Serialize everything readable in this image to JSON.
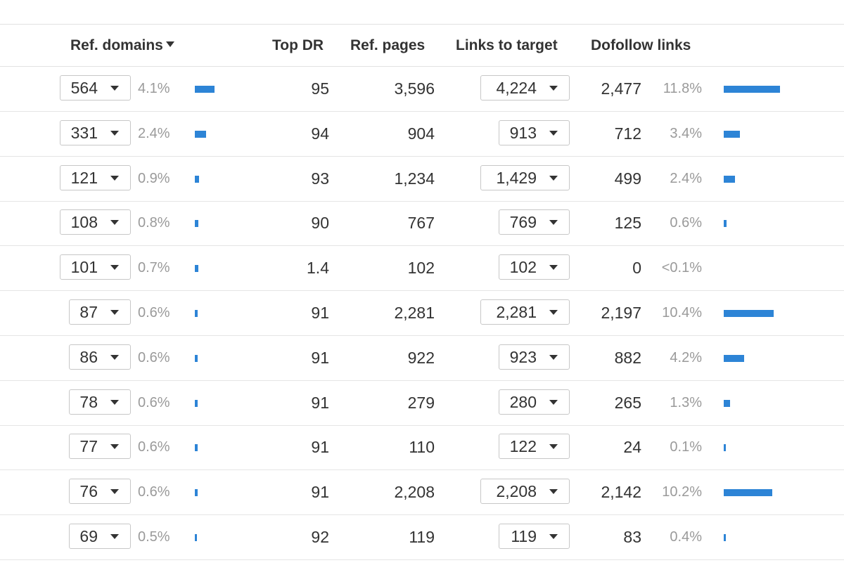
{
  "header": {
    "ref_domains": "Ref. domains",
    "top_dr": "Top DR",
    "ref_pages": "Ref. pages",
    "links_to_target": "Links to target",
    "dofollow_links": "Dofollow links"
  },
  "colors": {
    "bar": "#2d84d6",
    "muted_text": "#9a9a9a",
    "border": "#c7c7c7"
  },
  "rows": [
    {
      "ref_domains": "564",
      "ref_domains_pct": "4.1%",
      "ref_domains_share": 4.1,
      "top_dr": "95",
      "ref_pages": "3,596",
      "links_to_target": "4,224",
      "dofollow": "2,477",
      "dofollow_pct": "11.8%",
      "dofollow_share": 11.8
    },
    {
      "ref_domains": "331",
      "ref_domains_pct": "2.4%",
      "ref_domains_share": 2.4,
      "top_dr": "94",
      "ref_pages": "904",
      "links_to_target": "913",
      "dofollow": "712",
      "dofollow_pct": "3.4%",
      "dofollow_share": 3.4
    },
    {
      "ref_domains": "121",
      "ref_domains_pct": "0.9%",
      "ref_domains_share": 0.9,
      "top_dr": "93",
      "ref_pages": "1,234",
      "links_to_target": "1,429",
      "dofollow": "499",
      "dofollow_pct": "2.4%",
      "dofollow_share": 2.4
    },
    {
      "ref_domains": "108",
      "ref_domains_pct": "0.8%",
      "ref_domains_share": 0.8,
      "top_dr": "90",
      "ref_pages": "767",
      "links_to_target": "769",
      "dofollow": "125",
      "dofollow_pct": "0.6%",
      "dofollow_share": 0.6
    },
    {
      "ref_domains": "101",
      "ref_domains_pct": "0.7%",
      "ref_domains_share": 0.7,
      "top_dr": "1.4",
      "ref_pages": "102",
      "links_to_target": "102",
      "dofollow": "0",
      "dofollow_pct": "<0.1%",
      "dofollow_share": 0
    },
    {
      "ref_domains": "87",
      "ref_domains_pct": "0.6%",
      "ref_domains_share": 0.6,
      "top_dr": "91",
      "ref_pages": "2,281",
      "links_to_target": "2,281",
      "dofollow": "2,197",
      "dofollow_pct": "10.4%",
      "dofollow_share": 10.4
    },
    {
      "ref_domains": "86",
      "ref_domains_pct": "0.6%",
      "ref_domains_share": 0.6,
      "top_dr": "91",
      "ref_pages": "922",
      "links_to_target": "923",
      "dofollow": "882",
      "dofollow_pct": "4.2%",
      "dofollow_share": 4.2
    },
    {
      "ref_domains": "78",
      "ref_domains_pct": "0.6%",
      "ref_domains_share": 0.6,
      "top_dr": "91",
      "ref_pages": "279",
      "links_to_target": "280",
      "dofollow": "265",
      "dofollow_pct": "1.3%",
      "dofollow_share": 1.3
    },
    {
      "ref_domains": "77",
      "ref_domains_pct": "0.6%",
      "ref_domains_share": 0.6,
      "top_dr": "91",
      "ref_pages": "110",
      "links_to_target": "122",
      "dofollow": "24",
      "dofollow_pct": "0.1%",
      "dofollow_share": 0.1
    },
    {
      "ref_domains": "76",
      "ref_domains_pct": "0.6%",
      "ref_domains_share": 0.6,
      "top_dr": "91",
      "ref_pages": "2,208",
      "links_to_target": "2,208",
      "dofollow": "2,142",
      "dofollow_pct": "10.2%",
      "dofollow_share": 10.2
    },
    {
      "ref_domains": "69",
      "ref_domains_pct": "0.5%",
      "ref_domains_share": 0.5,
      "top_dr": "92",
      "ref_pages": "119",
      "links_to_target": "119",
      "dofollow": "83",
      "dofollow_pct": "0.4%",
      "dofollow_share": 0.4
    }
  ]
}
